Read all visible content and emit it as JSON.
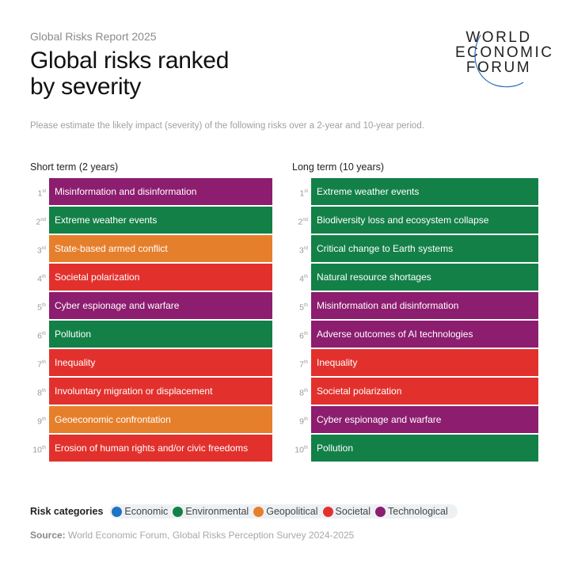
{
  "header": {
    "report": "Global Risks Report 2025",
    "title_line1": "Global risks ranked",
    "title_line2": "by severity",
    "logo": [
      "WORLD",
      "ECONOMIC",
      "FORUM"
    ]
  },
  "description": "Please estimate the likely impact (severity) of the following risks over a 2-year and 10-year period.",
  "colors": {
    "Economic": "#1f73c4",
    "Environmental": "#138048",
    "Geopolitical": "#e67f2c",
    "Societal": "#e2312d",
    "Technological": "#8c1d6f"
  },
  "chart_data": {
    "type": "table",
    "columns": [
      {
        "title": "Short term (2 years)",
        "rows": [
          {
            "rank": "1",
            "suffix": "st",
            "risk": "Misinformation and disinformation",
            "category": "Technological"
          },
          {
            "rank": "2",
            "suffix": "nd",
            "risk": "Extreme weather events",
            "category": "Environmental"
          },
          {
            "rank": "3",
            "suffix": "rd",
            "risk": "State-based armed conflict",
            "category": "Geopolitical"
          },
          {
            "rank": "4",
            "suffix": "th",
            "risk": "Societal polarization",
            "category": "Societal"
          },
          {
            "rank": "5",
            "suffix": "th",
            "risk": "Cyber espionage and warfare",
            "category": "Technological"
          },
          {
            "rank": "6",
            "suffix": "th",
            "risk": "Pollution",
            "category": "Environmental"
          },
          {
            "rank": "7",
            "suffix": "th",
            "risk": "Inequality",
            "category": "Societal"
          },
          {
            "rank": "8",
            "suffix": "th",
            "risk": "Involuntary migration or displacement",
            "category": "Societal"
          },
          {
            "rank": "9",
            "suffix": "th",
            "risk": "Geoeconomic confrontation",
            "category": "Geopolitical"
          },
          {
            "rank": "10",
            "suffix": "th",
            "risk": "Erosion of human rights and/or civic freedoms",
            "category": "Societal"
          }
        ]
      },
      {
        "title": "Long term (10 years)",
        "rows": [
          {
            "rank": "1",
            "suffix": "st",
            "risk": "Extreme weather events",
            "category": "Environmental"
          },
          {
            "rank": "2",
            "suffix": "nd",
            "risk": "Biodiversity loss and ecosystem collapse",
            "category": "Environmental"
          },
          {
            "rank": "3",
            "suffix": "rd",
            "risk": "Critical change to Earth systems",
            "category": "Environmental"
          },
          {
            "rank": "4",
            "suffix": "th",
            "risk": "Natural resource shortages",
            "category": "Environmental"
          },
          {
            "rank": "5",
            "suffix": "th",
            "risk": "Misinformation and disinformation",
            "category": "Technological"
          },
          {
            "rank": "6",
            "suffix": "th",
            "risk": "Adverse outcomes of AI technologies",
            "category": "Technological"
          },
          {
            "rank": "7",
            "suffix": "th",
            "risk": "Inequality",
            "category": "Societal"
          },
          {
            "rank": "8",
            "suffix": "th",
            "risk": "Societal polarization",
            "category": "Societal"
          },
          {
            "rank": "9",
            "suffix": "th",
            "risk": "Cyber espionage and warfare",
            "category": "Technological"
          },
          {
            "rank": "10",
            "suffix": "th",
            "risk": "Pollution",
            "category": "Environmental"
          }
        ]
      }
    ]
  },
  "legend": {
    "title": "Risk categories",
    "items": [
      "Economic",
      "Environmental",
      "Geopolitical",
      "Societal",
      "Technological"
    ]
  },
  "source": {
    "label": "Source:",
    "text": " World Economic Forum, Global Risks Perception Survey 2024-2025"
  }
}
